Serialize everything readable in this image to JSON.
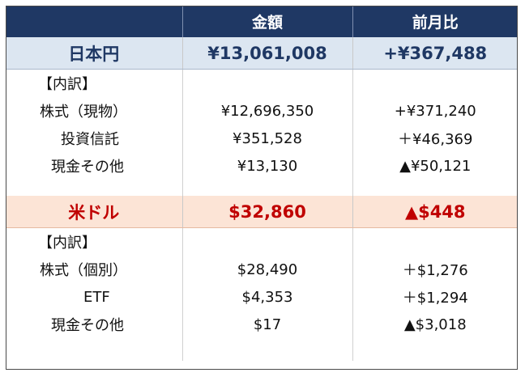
{
  "header": {
    "col1": "",
    "col2": "金額",
    "col3": "前月比"
  },
  "jpy": {
    "label": "日本円",
    "amount": "¥13,061,008",
    "change": "+¥367,488",
    "breakdown_label": "【内訳】",
    "rows": [
      {
        "label": "株式（現物）",
        "amount": "¥12,696,350",
        "change": "+¥371,240"
      },
      {
        "label": "投資信託",
        "amount": "¥351,528",
        "change": "＋¥46,369"
      },
      {
        "label": "現金その他",
        "amount": "¥13,130",
        "change": "▲¥50,121"
      }
    ]
  },
  "usd": {
    "label": "米ドル",
    "amount": "$32,860",
    "change": "▲$448",
    "breakdown_label": "【内訳】",
    "rows": [
      {
        "label": "株式（個別）",
        "amount": "$28,490",
        "change": "＋$1,276"
      },
      {
        "label": "ETF",
        "amount": "$4,353",
        "change": "＋$1,294"
      },
      {
        "label": "現金その他",
        "amount": "$17",
        "change": "▲$3,018"
      }
    ]
  },
  "colors": {
    "header_bg": "#1f3864",
    "jpy_bg": "#dce6f1",
    "jpy_text": "#1f3864",
    "usd_bg": "#fce4d6",
    "usd_text": "#c00000"
  }
}
